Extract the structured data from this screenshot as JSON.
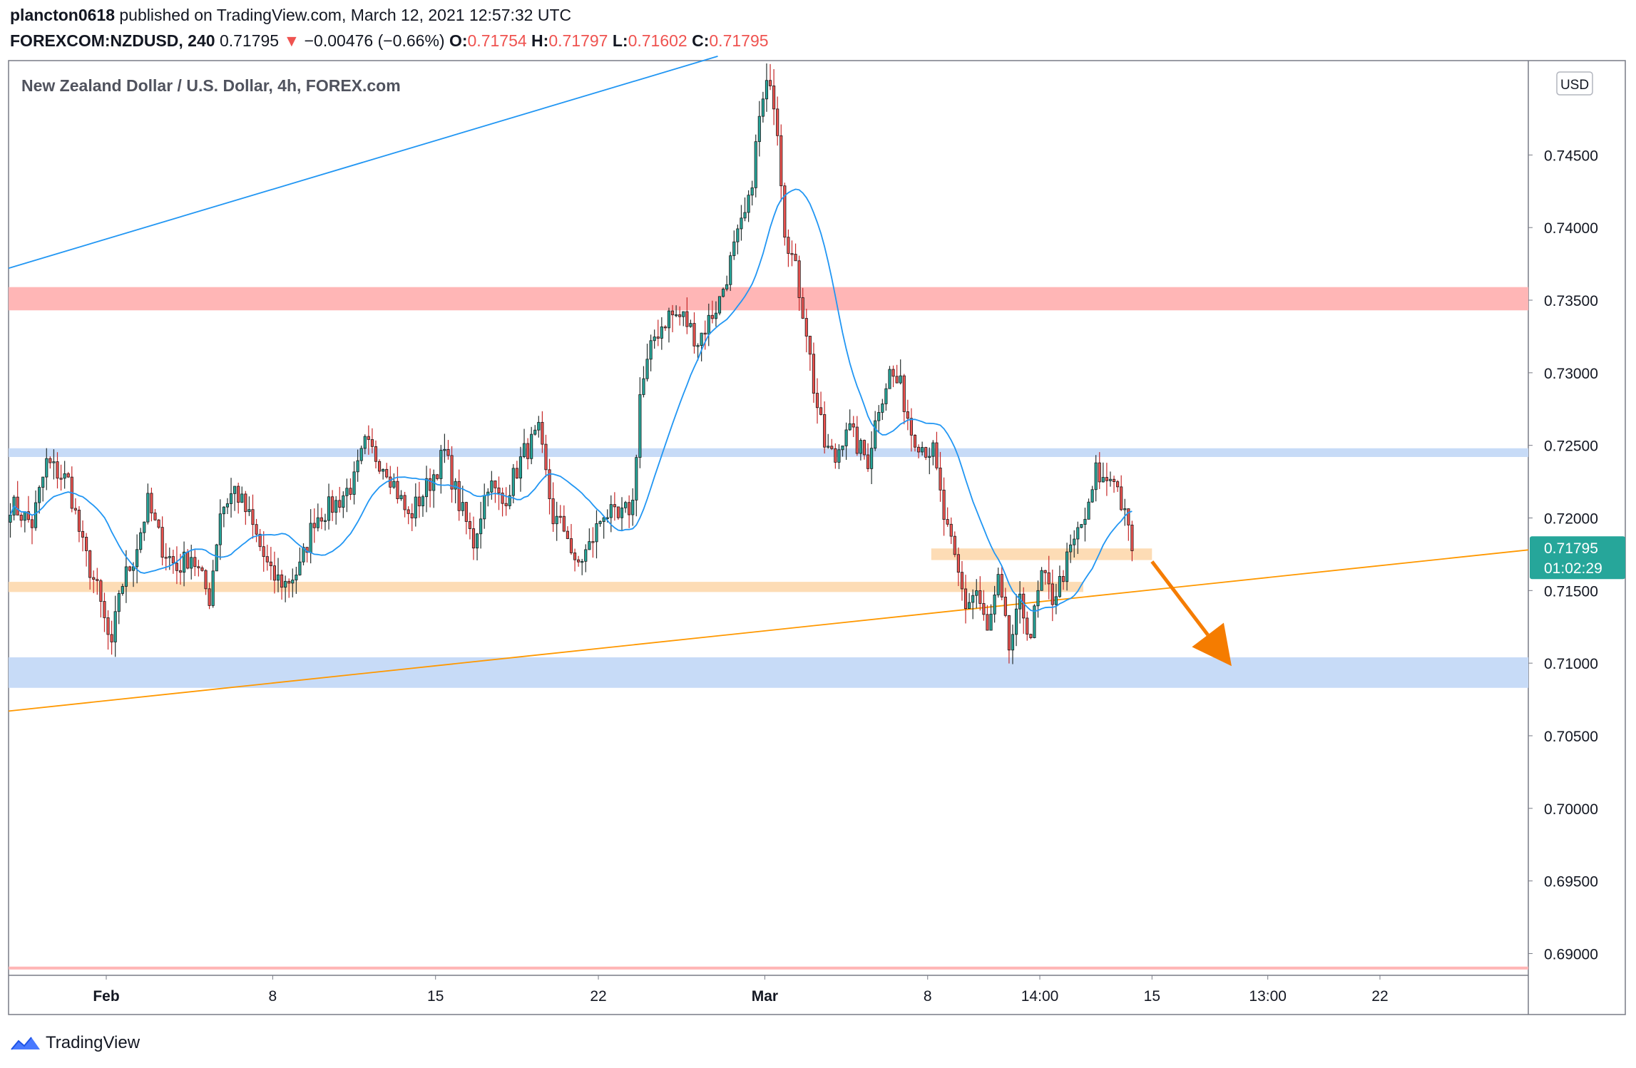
{
  "header": {
    "publisher": "plancton0618",
    "published_text": "published on TradingView.com, March 12, 2021 12:57:32 UTC",
    "symbol": "FOREXCOM:NZDUSD, 240",
    "last": "0.71795",
    "arrow": "▼",
    "change": "−0.00476 (−0.66%)",
    "o_label": "O:",
    "o_val": "0.71754",
    "h_label": "H:",
    "h_val": "0.71797",
    "l_label": "L:",
    "l_val": "0.71602",
    "c_label": "C:",
    "c_val": "0.71795"
  },
  "footer": {
    "brand": "TradingView"
  },
  "chart_data": {
    "type": "candlestick",
    "title": "New Zealand Dollar / U.S. Dollar, 4h, FOREX.com",
    "currency": "USD",
    "ylim": [
      0.6885,
      0.7515
    ],
    "y_ticks": [
      "0.69000",
      "0.69500",
      "0.70000",
      "0.70500",
      "0.71000",
      "0.71500",
      "0.72000",
      "0.72500",
      "0.73000",
      "0.73500",
      "0.74000",
      "0.74500"
    ],
    "x_labels": [
      "Feb",
      "8",
      "15",
      "22",
      "Mar",
      "8",
      "14:00",
      "15",
      "13:00",
      "22"
    ],
    "x_label_bars": [
      27,
      73,
      118,
      163,
      209,
      254,
      285,
      316,
      348,
      379
    ],
    "bars_visible": 420,
    "last_price": "0.71795",
    "countdown": "01:02:29",
    "zones": [
      {
        "name": "resistance-red",
        "from": 0.7343,
        "to": 0.7359,
        "color": "#ffb6b6",
        "x_to_bar": 420
      },
      {
        "name": "blue-upper",
        "from": 0.7242,
        "to": 0.7248,
        "color": "#c7dbf7",
        "x_to_bar": 420
      },
      {
        "name": "orange-local",
        "from": 0.7171,
        "to": 0.7179,
        "color": "#fddcb5",
        "x_from_bar": 255,
        "x_to_bar": 316
      },
      {
        "name": "orange-support",
        "from": 0.7149,
        "to": 0.7156,
        "color": "#fddcb5",
        "x_to_bar": 297
      },
      {
        "name": "blue-target",
        "from": 0.7083,
        "to": 0.7104,
        "color": "#c7dbf7",
        "x_to_bar": 420
      },
      {
        "name": "red-bottom",
        "from": 0.6889,
        "to": 0.6891,
        "color": "#ffb6b6",
        "x_to_bar": 420
      }
    ],
    "trendlines": [
      {
        "name": "blue-trendline",
        "p1": [
          0,
          0.7372
        ],
        "p2": [
          196,
          0.7518
        ],
        "color": "#2196f3"
      },
      {
        "name": "orange-trendline",
        "p1": [
          0,
          0.7067
        ],
        "p2": [
          420,
          0.7178
        ],
        "color": "#ff9800"
      }
    ],
    "arrow": {
      "from": [
        316,
        0.717
      ],
      "to": [
        338,
        0.7098
      ],
      "color": "#f57c00"
    },
    "ma_period": 20,
    "key_points": [
      [
        0,
        0.721
      ],
      [
        6,
        0.7196
      ],
      [
        10,
        0.7238
      ],
      [
        16,
        0.7225
      ],
      [
        20,
        0.718
      ],
      [
        24,
        0.715
      ],
      [
        28,
        0.7108
      ],
      [
        30,
        0.715
      ],
      [
        34,
        0.7172
      ],
      [
        38,
        0.721
      ],
      [
        42,
        0.718
      ],
      [
        46,
        0.7165
      ],
      [
        50,
        0.7175
      ],
      [
        55,
        0.7145
      ],
      [
        58,
        0.7205
      ],
      [
        62,
        0.722
      ],
      [
        66,
        0.72
      ],
      [
        72,
        0.716
      ],
      [
        76,
        0.7155
      ],
      [
        80,
        0.7165
      ],
      [
        84,
        0.72
      ],
      [
        90,
        0.721
      ],
      [
        95,
        0.7225
      ],
      [
        98,
        0.725
      ],
      [
        104,
        0.7235
      ],
      [
        110,
        0.72
      ],
      [
        116,
        0.7225
      ],
      [
        120,
        0.7245
      ],
      [
        124,
        0.721
      ],
      [
        128,
        0.7183
      ],
      [
        132,
        0.7225
      ],
      [
        136,
        0.721
      ],
      [
        142,
        0.7245
      ],
      [
        146,
        0.7258
      ],
      [
        150,
        0.72
      ],
      [
        154,
        0.719
      ],
      [
        156,
        0.7165
      ],
      [
        160,
        0.718
      ],
      [
        164,
        0.7205
      ],
      [
        168,
        0.7198
      ],
      [
        172,
        0.721
      ],
      [
        174,
        0.7285
      ],
      [
        178,
        0.7325
      ],
      [
        182,
        0.734
      ],
      [
        186,
        0.7338
      ],
      [
        190,
        0.7322
      ],
      [
        196,
        0.735
      ],
      [
        200,
        0.7385
      ],
      [
        204,
        0.7415
      ],
      [
        207,
        0.7475
      ],
      [
        210,
        0.7505
      ],
      [
        212,
        0.747
      ],
      [
        214,
        0.74
      ],
      [
        217,
        0.737
      ],
      [
        220,
        0.733
      ],
      [
        222,
        0.729
      ],
      [
        225,
        0.725
      ],
      [
        228,
        0.724
      ],
      [
        231,
        0.7265
      ],
      [
        234,
        0.725
      ],
      [
        237,
        0.724
      ],
      [
        240,
        0.7278
      ],
      [
        243,
        0.73
      ],
      [
        246,
        0.729
      ],
      [
        249,
        0.726
      ],
      [
        252,
        0.725
      ],
      [
        255,
        0.7245
      ],
      [
        258,
        0.72
      ],
      [
        261,
        0.717
      ],
      [
        264,
        0.714
      ],
      [
        267,
        0.715
      ],
      [
        270,
        0.712
      ],
      [
        273,
        0.7155
      ],
      [
        276,
        0.711
      ],
      [
        279,
        0.714
      ],
      [
        282,
        0.712
      ],
      [
        285,
        0.716
      ],
      [
        288,
        0.7145
      ],
      [
        290,
        0.7155
      ],
      [
        292,
        0.717
      ],
      [
        295,
        0.719
      ],
      [
        298,
        0.7205
      ],
      [
        300,
        0.7232
      ],
      [
        302,
        0.7225
      ],
      [
        305,
        0.723
      ],
      [
        308,
        0.72
      ],
      [
        310,
        0.718
      ]
    ]
  }
}
